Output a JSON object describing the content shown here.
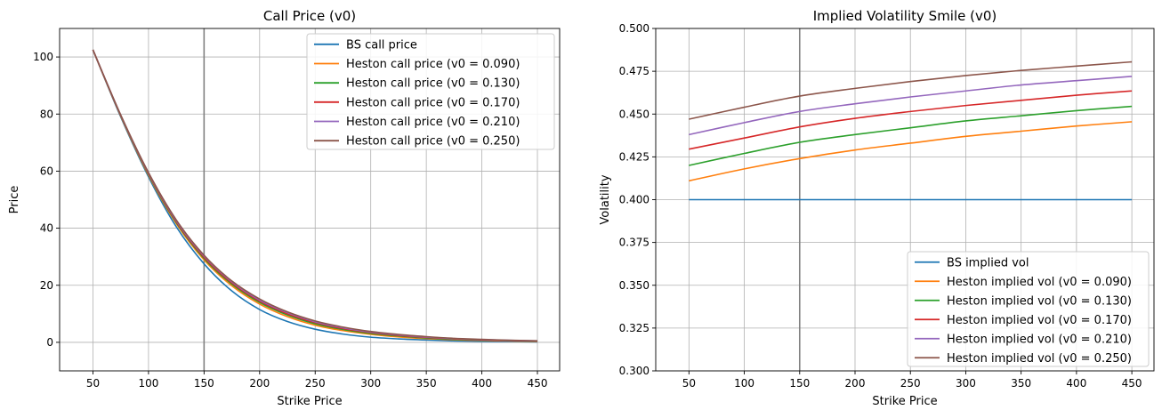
{
  "chart_data": [
    {
      "type": "line",
      "title": "Call Price (v0)",
      "xlabel": "Strike Price",
      "ylabel": "Price",
      "xlim": [
        20,
        470
      ],
      "ylim": [
        -10,
        110
      ],
      "xticks": [
        50,
        100,
        150,
        200,
        250,
        300,
        350,
        400,
        450
      ],
      "yticks": [
        0,
        20,
        40,
        60,
        80,
        100
      ],
      "grid": true,
      "vline": 150,
      "legend_position": "upper-right",
      "x": [
        50,
        75,
        100,
        125,
        150,
        175,
        200,
        225,
        250,
        275,
        300,
        325,
        350,
        375,
        400,
        425,
        450
      ],
      "series": [
        {
          "name": "BS call price",
          "color": "#1f77b4",
          "values": [
            102.5,
            79.0,
            58.0,
            40.5,
            27.5,
            18.0,
            11.5,
            7.3,
            4.6,
            2.9,
            1.8,
            1.2,
            0.8,
            0.5,
            0.35,
            0.25,
            0.15
          ]
        },
        {
          "name": "Heston call price (v0 = 0.090)",
          "color": "#ff7f0e",
          "values": [
            102.5,
            79.3,
            58.6,
            41.6,
            28.9,
            19.8,
            13.4,
            9.0,
            6.0,
            4.1,
            2.8,
            1.9,
            1.3,
            0.9,
            0.65,
            0.45,
            0.3
          ]
        },
        {
          "name": "Heston call price (v0 = 0.130)",
          "color": "#2ca02c",
          "values": [
            102.5,
            79.4,
            58.9,
            42.0,
            29.4,
            20.4,
            14.0,
            9.6,
            6.5,
            4.5,
            3.1,
            2.2,
            1.5,
            1.05,
            0.75,
            0.55,
            0.4
          ]
        },
        {
          "name": "Heston call price (v0 = 0.170)",
          "color": "#d62728",
          "values": [
            102.5,
            79.5,
            59.1,
            42.3,
            29.8,
            20.8,
            14.4,
            10.0,
            6.9,
            4.8,
            3.4,
            2.4,
            1.7,
            1.2,
            0.85,
            0.6,
            0.45
          ]
        },
        {
          "name": "Heston call price (v0 = 0.210)",
          "color": "#9467bd",
          "values": [
            102.5,
            79.6,
            59.3,
            42.6,
            30.2,
            21.2,
            14.8,
            10.4,
            7.2,
            5.1,
            3.6,
            2.6,
            1.85,
            1.3,
            0.95,
            0.7,
            0.5
          ]
        },
        {
          "name": "Heston call price (v0 = 0.250)",
          "color": "#8c564b",
          "values": [
            102.5,
            79.7,
            59.5,
            42.9,
            30.5,
            21.5,
            15.2,
            10.7,
            7.5,
            5.35,
            3.8,
            2.75,
            2.0,
            1.4,
            1.05,
            0.75,
            0.55
          ]
        }
      ]
    },
    {
      "type": "line",
      "title": "Implied Volatility Smile (v0)",
      "xlabel": "Strike Price",
      "ylabel": "Volatility",
      "xlim": [
        20,
        470
      ],
      "ylim": [
        0.3,
        0.5
      ],
      "xticks": [
        50,
        100,
        150,
        200,
        250,
        300,
        350,
        400,
        450
      ],
      "yticks": [
        0.3,
        0.325,
        0.35,
        0.375,
        0.4,
        0.425,
        0.45,
        0.475,
        0.5
      ],
      "ytick_labels": [
        "0.300",
        "0.325",
        "0.350",
        "0.375",
        "0.400",
        "0.425",
        "0.450",
        "0.475",
        "0.500"
      ],
      "grid": true,
      "vline": 150,
      "legend_position": "lower-right",
      "x": [
        50,
        100,
        150,
        200,
        250,
        300,
        350,
        400,
        450
      ],
      "series": [
        {
          "name": "BS implied vol",
          "color": "#1f77b4",
          "values": [
            0.4,
            0.4,
            0.4,
            0.4,
            0.4,
            0.4,
            0.4,
            0.4,
            0.4
          ]
        },
        {
          "name": "Heston implied vol (v0 = 0.090)",
          "color": "#ff7f0e",
          "values": [
            0.411,
            0.418,
            0.424,
            0.429,
            0.433,
            0.437,
            0.44,
            0.443,
            0.4455
          ]
        },
        {
          "name": "Heston implied vol (v0 = 0.130)",
          "color": "#2ca02c",
          "values": [
            0.42,
            0.427,
            0.4335,
            0.438,
            0.442,
            0.446,
            0.449,
            0.452,
            0.4545
          ]
        },
        {
          "name": "Heston implied vol (v0 = 0.170)",
          "color": "#d62728",
          "values": [
            0.4295,
            0.436,
            0.4425,
            0.4475,
            0.4515,
            0.455,
            0.458,
            0.461,
            0.4635
          ]
        },
        {
          "name": "Heston implied vol (v0 = 0.210)",
          "color": "#9467bd",
          "values": [
            0.438,
            0.445,
            0.4515,
            0.456,
            0.46,
            0.4635,
            0.467,
            0.4695,
            0.472
          ]
        },
        {
          "name": "Heston implied vol (v0 = 0.250)",
          "color": "#8c564b",
          "values": [
            0.447,
            0.454,
            0.4605,
            0.465,
            0.469,
            0.4725,
            0.4755,
            0.478,
            0.4805
          ]
        }
      ]
    }
  ]
}
